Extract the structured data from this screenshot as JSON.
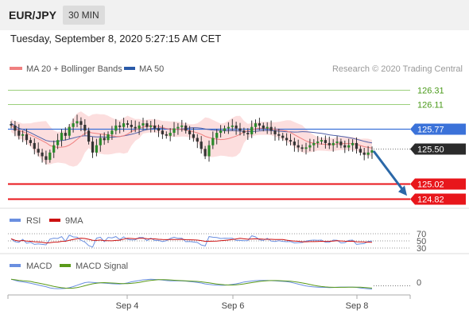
{
  "header": {
    "symbol": "EUR/JPY",
    "interval": "30 MIN"
  },
  "timestamp": "Tuesday, September 8, 2020 5:27:15 AM CET",
  "chart_data": [
    {
      "type": "candlestick",
      "legend": [
        {
          "label": "MA 20 + Bollinger Bands",
          "color": "#f08080"
        },
        {
          "label": "MA 50",
          "color": "#2a5aa8"
        }
      ],
      "credit": "Research © 2020 Trading Central",
      "ylim": [
        124.73,
        126.45
      ],
      "close_series": [
        125.82,
        125.75,
        125.68,
        125.7,
        125.62,
        125.58,
        125.5,
        125.45,
        125.4,
        125.35,
        125.45,
        125.55,
        125.62,
        125.72,
        125.68,
        125.8,
        125.85,
        125.88,
        125.83,
        125.75,
        125.6,
        125.45,
        125.55,
        125.65,
        125.62,
        125.7,
        125.75,
        125.82,
        125.8,
        125.85,
        125.83,
        125.8,
        125.78,
        125.82,
        125.85,
        125.8,
        125.82,
        125.78,
        125.75,
        125.7,
        125.68,
        125.72,
        125.78,
        125.8,
        125.82,
        125.75,
        125.7,
        125.65,
        125.6,
        125.5,
        125.4,
        125.55,
        125.65,
        125.72,
        125.75,
        125.78,
        125.8,
        125.82,
        125.78,
        125.75,
        125.72,
        125.7,
        125.8,
        125.85,
        125.82,
        125.78,
        125.8,
        125.75,
        125.7,
        125.68,
        125.65,
        125.62,
        125.6,
        125.55,
        125.52,
        125.5,
        125.52,
        125.55,
        125.58,
        125.6,
        125.62,
        125.58,
        125.55,
        125.58,
        125.6,
        125.55,
        125.52,
        125.55,
        125.58,
        125.5,
        125.45,
        125.42,
        125.45,
        125.48
      ],
      "price_levels": [
        {
          "label": "126.31",
          "value": 126.31,
          "color": "#9bcf7c",
          "style": "label-only"
        },
        {
          "label": "126.11",
          "value": 126.11,
          "color": "#9bcf7c",
          "style": "label-only"
        },
        {
          "label": "125.77",
          "value": 125.77,
          "color": "#3b72d9",
          "style": "box"
        },
        {
          "label": "125.50",
          "value": 125.5,
          "color": "#2b2b2b",
          "style": "box"
        },
        {
          "label": "125.02",
          "value": 125.02,
          "color": "#e8161b",
          "style": "box"
        },
        {
          "label": "124.82",
          "value": 124.82,
          "color": "#e8161b",
          "style": "box"
        }
      ],
      "projection": {
        "from": 125.47,
        "to": 124.88,
        "color": "#2b68a8"
      }
    },
    {
      "type": "line",
      "legend": [
        {
          "label": "RSI",
          "color": "#6a8fe0"
        },
        {
          "label": "9MA",
          "color": "#cc1111"
        }
      ],
      "levels": [
        "70",
        "50",
        "30"
      ],
      "ylim": [
        20,
        80
      ]
    },
    {
      "type": "line",
      "legend": [
        {
          "label": "MACD",
          "color": "#6a8fe0"
        },
        {
          "label": "MACD Signal",
          "color": "#5a9a1a"
        }
      ],
      "levels": [
        "0"
      ]
    }
  ],
  "xaxis": {
    "ticks": [
      "Sep 4",
      "Sep 6",
      "Sep 8"
    ]
  }
}
